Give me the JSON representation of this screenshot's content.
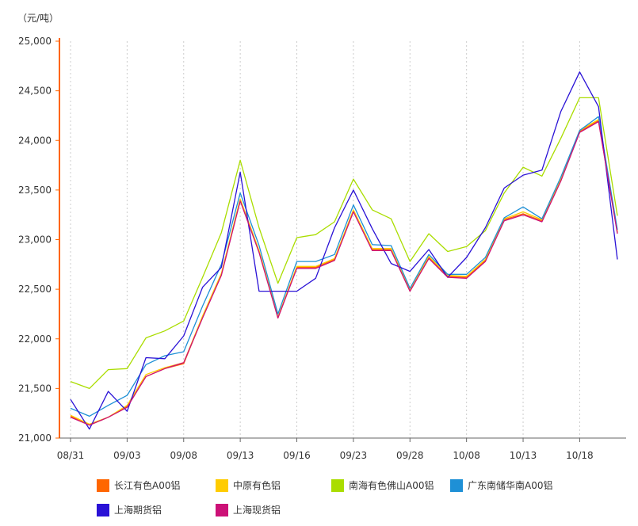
{
  "unit_label": "（元/吨）",
  "chart_data": {
    "type": "line",
    "title": "",
    "xlabel": "",
    "ylabel": "（元/吨）",
    "ylim": [
      21000,
      25000
    ],
    "y_ticks": [
      21000,
      21500,
      22000,
      22500,
      23000,
      23500,
      24000,
      24500,
      25000
    ],
    "y_tick_labels": [
      "21,000",
      "21,500",
      "22,000",
      "22,500",
      "23,000",
      "23,500",
      "24,000",
      "24,500",
      "25,000"
    ],
    "x_tick_labels": [
      "08/31",
      "09/03",
      "09/08",
      "09/13",
      "09/16",
      "09/23",
      "09/28",
      "10/08",
      "10/13",
      "10/18"
    ],
    "x_tick_indices": [
      0,
      3,
      6,
      9,
      12,
      15,
      18,
      21,
      24,
      27
    ],
    "grid": "vertical dashed",
    "legend_position": "bottom",
    "n_points": 30,
    "series": [
      {
        "name": "长江有色A00铝",
        "color": "#ff6600",
        "values": [
          21220,
          21130,
          21210,
          21320,
          21620,
          21700,
          21750,
          22220,
          22650,
          23400,
          22880,
          22210,
          22720,
          22720,
          22800,
          23290,
          22900,
          22900,
          22480,
          22820,
          22630,
          22620,
          22790,
          23200,
          23260,
          23190,
          23600,
          24090,
          24200,
          23070
        ]
      },
      {
        "name": "中原有色铝",
        "color": "#ffcc00",
        "values": [
          21230,
          21140,
          21210,
          21330,
          21640,
          21710,
          21760,
          22230,
          22660,
          23410,
          22890,
          22220,
          22730,
          22730,
          22810,
          23300,
          22910,
          22910,
          22490,
          22830,
          22640,
          22630,
          22800,
          23210,
          23280,
          23200,
          23610,
          24100,
          24210,
          23080
        ]
      },
      {
        "name": "南海有色佛山A00铝",
        "color": "#aadd00",
        "values": [
          21570,
          21500,
          21690,
          21700,
          22010,
          22080,
          22180,
          22620,
          23070,
          23800,
          23120,
          22560,
          23020,
          23050,
          23180,
          23610,
          23300,
          23210,
          22780,
          23060,
          22880,
          22930,
          23090,
          23470,
          23730,
          23640,
          24020,
          24430,
          24430,
          23240
        ]
      },
      {
        "name": "广东南储华南A00铝",
        "color": "#1e90d6",
        "values": [
          21300,
          21220,
          21330,
          21430,
          21740,
          21830,
          21870,
          22330,
          22750,
          23470,
          22940,
          22250,
          22780,
          22780,
          22850,
          23350,
          22950,
          22940,
          22510,
          22850,
          22650,
          22650,
          22820,
          23220,
          23330,
          23210,
          23630,
          24100,
          24240,
          23100
        ]
      },
      {
        "name": "上海期货铝",
        "color": "#2a12d6",
        "values": [
          21390,
          21090,
          21470,
          21270,
          21810,
          21800,
          22030,
          22520,
          22720,
          23680,
          22480,
          22480,
          22480,
          22610,
          23120,
          23500,
          23110,
          22760,
          22680,
          22900,
          22620,
          22820,
          23120,
          23520,
          23650,
          23700,
          24290,
          24690,
          24340,
          22800
        ]
      },
      {
        "name": "上海现货铝",
        "color": "#cc1177",
        "values": [
          21210,
          21130,
          21210,
          21310,
          21620,
          21700,
          21760,
          22210,
          22640,
          23390,
          22870,
          22210,
          22710,
          22710,
          22790,
          23280,
          22890,
          22890,
          22480,
          22810,
          22620,
          22610,
          22780,
          23190,
          23250,
          23180,
          23590,
          24080,
          24190,
          23060
        ]
      }
    ]
  }
}
